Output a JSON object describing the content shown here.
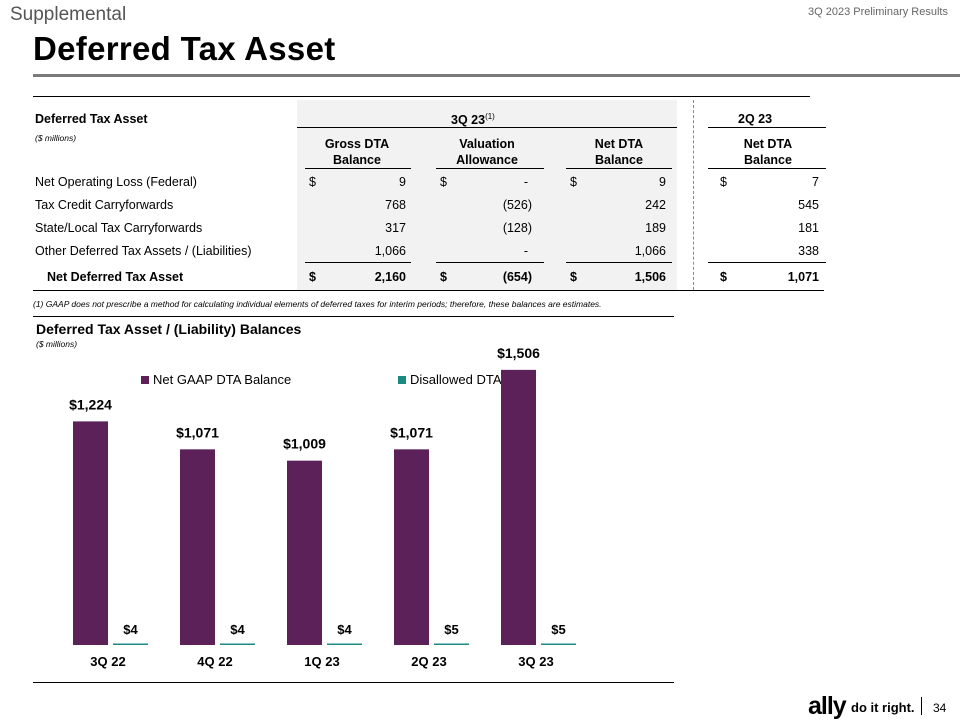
{
  "header": {
    "section": "Supplemental",
    "report": "3Q 2023 Preliminary Results",
    "title": "Deferred Tax Asset"
  },
  "table": {
    "heading": "Deferred Tax Asset",
    "units": "($ millions)",
    "period_main": "3Q 23",
    "period_main_note": "(1)",
    "period_prior": "2Q 23",
    "columns": [
      {
        "line1": "Gross DTA",
        "line2": "Balance"
      },
      {
        "line1": "Valuation",
        "line2": "Allowance"
      },
      {
        "line1": "Net DTA",
        "line2": "Balance"
      },
      {
        "line1": "Net DTA",
        "line2": "Balance"
      }
    ],
    "rows": [
      {
        "label": "Net Operating Loss (Federal)",
        "values": [
          "9",
          "-",
          "9",
          "7"
        ],
        "dollar": true
      },
      {
        "label": "Tax Credit Carryforwards",
        "values": [
          "768",
          "(526)",
          "242",
          "545"
        ],
        "dollar": false
      },
      {
        "label": "State/Local Tax Carryforwards",
        "values": [
          "317",
          "(128)",
          "189",
          "181"
        ],
        "dollar": false
      },
      {
        "label": "Other Deferred Tax Assets / (Liabilities)",
        "values": [
          "1,066",
          "-",
          "1,066",
          "338"
        ],
        "dollar": false
      }
    ],
    "total": {
      "label": "Net Deferred Tax Asset",
      "values": [
        "2,160",
        "(654)",
        "1,506",
        "1,071"
      ]
    },
    "currency_symbol": "$",
    "footnote": "(1)    GAAP does not prescribe a method for calculating individual elements of deferred taxes for interim periods; therefore, these balances are estimates."
  },
  "chart_data": {
    "type": "bar",
    "title": "Deferred Tax Asset / (Liability) Balances",
    "subtitle": "($ millions)",
    "categories": [
      "3Q 22",
      "4Q 22",
      "1Q 23",
      "2Q 23",
      "3Q 23"
    ],
    "series": [
      {
        "name": "Net GAAP DTA Balance",
        "values": [
          1224,
          1071,
          1009,
          1071,
          1506
        ],
        "labels": [
          "$1,224",
          "$1,071",
          "$1,009",
          "$1,071",
          "$1,506"
        ],
        "color": "#5b2158"
      },
      {
        "name": "Disallowed DTA",
        "values": [
          4,
          4,
          4,
          5,
          5
        ],
        "labels": [
          "$4",
          "$4",
          "$4",
          "$5",
          "$5"
        ],
        "color": "#1b8a83"
      }
    ],
    "ylim": [
      0,
      1560
    ],
    "grid": false,
    "legend": "top"
  },
  "footer": {
    "brand": "ally",
    "tagline": "do it right.",
    "page": "34"
  }
}
